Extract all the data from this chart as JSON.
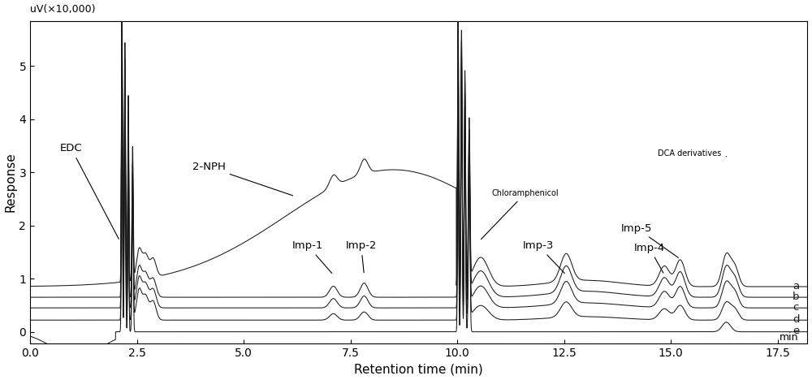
{
  "xlabel": "Retention time (min)",
  "ylabel": "Response",
  "ylabel_secondary": "uV(×10,000)",
  "xlim": [
    0.0,
    18.2
  ],
  "ylim": [
    -0.22,
    5.85
  ],
  "yticks": [
    0.0,
    1.0,
    2.0,
    3.0,
    4.0,
    5.0
  ],
  "xticks": [
    0.0,
    2.5,
    5.0,
    7.5,
    10.0,
    12.5,
    15.0,
    17.5
  ],
  "trace_labels": [
    "a",
    "b",
    "c",
    "d",
    "e"
  ],
  "trace_offsets": [
    0.85,
    0.65,
    0.45,
    0.22,
    0.0
  ],
  "line_color": "#1a1a1a",
  "background_color": "#ffffff",
  "fontsize_labels": 11,
  "fontsize_ticks": 10,
  "fontsize_annotations": 9.5
}
